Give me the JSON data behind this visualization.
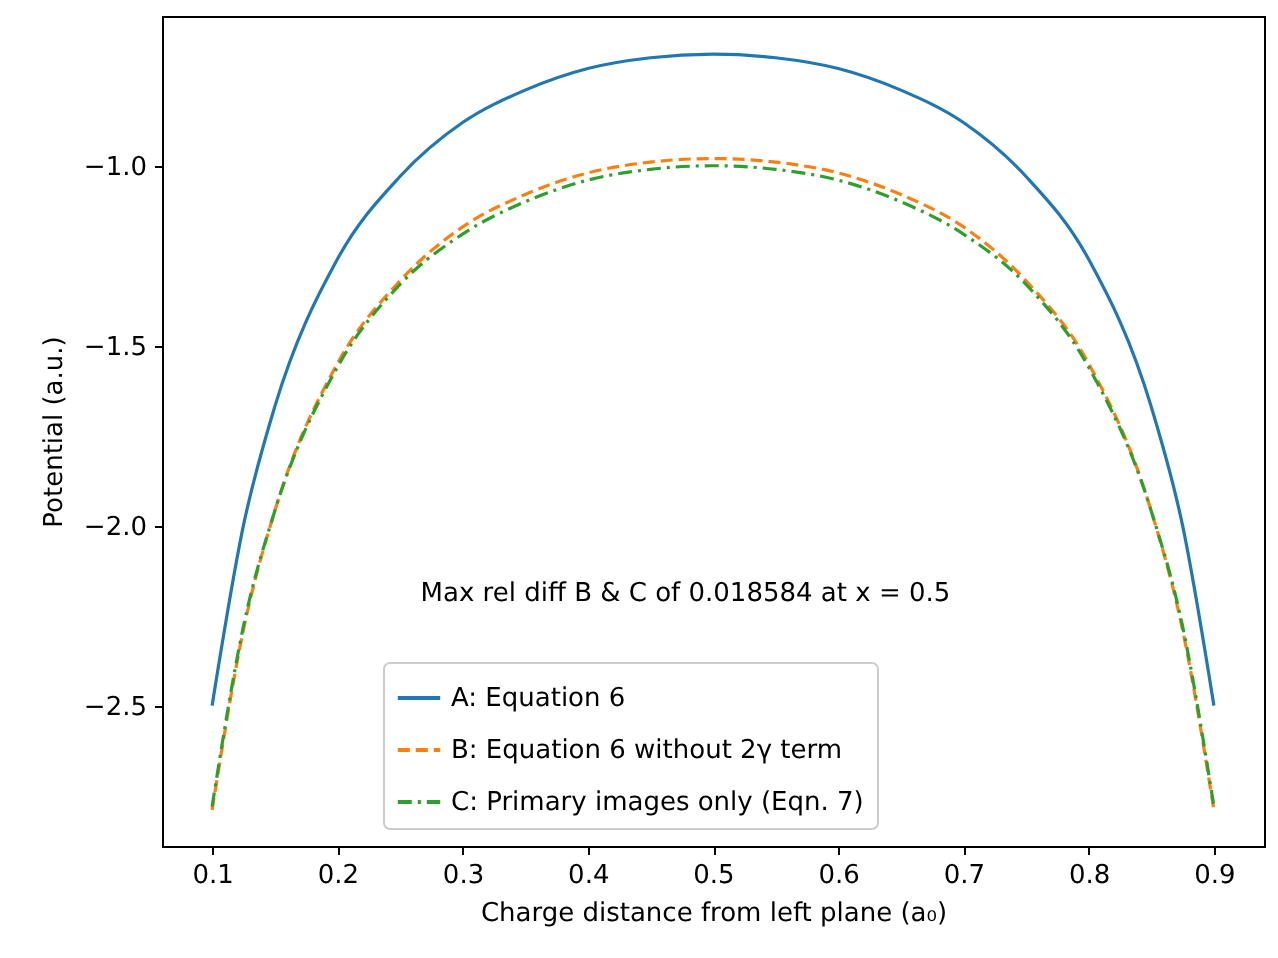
{
  "chart_data": {
    "type": "line",
    "xlabel": "Charge distance from left plane (a₀)",
    "ylabel": "Potential (a.u.)",
    "annotations": [
      "Max rel diff B & C of 0.018584 at x = 0.5"
    ],
    "x": [
      0.1,
      0.125,
      0.15,
      0.2,
      0.25,
      0.3,
      0.35,
      0.4,
      0.45,
      0.5,
      0.55,
      0.6,
      0.65,
      0.7,
      0.75,
      0.8,
      0.85,
      0.875,
      0.9
    ],
    "series": [
      {
        "name": "A: Equation 6",
        "color": "#1f77b4",
        "line_style": "solid",
        "values": [
          -2.5,
          -2.0,
          -1.67,
          -1.26,
          -1.03,
          -0.88,
          -0.79,
          -0.73,
          -0.7,
          -0.69,
          -0.7,
          -0.73,
          -0.79,
          -0.88,
          -1.03,
          -1.26,
          -1.67,
          -2.0,
          -2.5
        ]
      },
      {
        "name": "B: Equation 6 without 2γ term",
        "color": "#ff7f0e",
        "line_style": "dashed",
        "values": [
          -2.79,
          -2.29,
          -1.96,
          -1.55,
          -1.32,
          -1.17,
          -1.08,
          -1.02,
          -0.99,
          -0.98,
          -0.99,
          -1.02,
          -1.08,
          -1.17,
          -1.32,
          -1.55,
          -1.96,
          -2.29,
          -2.79
        ]
      },
      {
        "name": "C: Primary images only (Eqn. 7)",
        "color": "#2ca02c",
        "line_style": "dashdot",
        "values": [
          -2.78,
          -2.28,
          -1.96,
          -1.56,
          -1.33,
          -1.19,
          -1.1,
          -1.04,
          -1.01,
          -1.0,
          -1.01,
          -1.04,
          -1.1,
          -1.19,
          -1.33,
          -1.56,
          -1.96,
          -2.28,
          -2.78
        ]
      }
    ],
    "xlim": [
      0.06,
      0.94
    ],
    "ylim": [
      -2.89,
      -0.584
    ],
    "xticks": [
      0.1,
      0.2,
      0.3,
      0.4,
      0.5,
      0.6,
      0.7,
      0.8,
      0.9
    ],
    "yticks": [
      {
        "value": -2.5,
        "label": "−2.5"
      },
      {
        "value": -2.0,
        "label": "−2.0"
      },
      {
        "value": -1.5,
        "label": "−1.5"
      },
      {
        "value": -1.0,
        "label": "−1.0"
      }
    ],
    "grid": false,
    "legend": "bottom",
    "marker": "none"
  }
}
